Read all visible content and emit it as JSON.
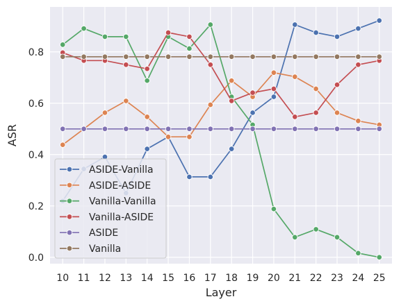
{
  "chart_data": {
    "type": "line",
    "title": "",
    "xlabel": "Layer",
    "ylabel": "ASR",
    "x": [
      10,
      11,
      12,
      13,
      14,
      15,
      16,
      17,
      18,
      19,
      20,
      21,
      22,
      23,
      24,
      25
    ],
    "x_tick_labels": [
      "10",
      "11",
      "12",
      "13",
      "14",
      "15",
      "16",
      "17",
      "18",
      "19",
      "20",
      "21",
      "22",
      "23",
      "24",
      "25"
    ],
    "xlim": [
      9.4,
      25.6
    ],
    "ylim": [
      -0.025,
      0.975
    ],
    "yticks": [
      0.0,
      0.2,
      0.4,
      0.6,
      0.8
    ],
    "y_tick_labels": [
      "0.0",
      "0.2",
      "0.4",
      "0.6",
      "0.8"
    ],
    "grid": true,
    "legend_position": "lower-left",
    "series": [
      {
        "name": "ASIDE-Vanilla",
        "color": "#4c72b0",
        "values": [
          0.219,
          0.344,
          0.391,
          0.25,
          0.422,
          0.469,
          0.313,
          0.313,
          0.422,
          0.563,
          0.625,
          0.906,
          0.875,
          0.859,
          0.891,
          0.922
        ]
      },
      {
        "name": "ASIDE-ASIDE",
        "color": "#dd8452",
        "values": [
          0.438,
          0.5,
          0.563,
          0.609,
          0.547,
          0.469,
          0.469,
          0.594,
          0.688,
          0.625,
          0.719,
          0.703,
          0.656,
          0.563,
          0.531,
          0.516
        ]
      },
      {
        "name": "Vanilla-Vanilla",
        "color": "#55a868",
        "values": [
          0.828,
          0.891,
          0.859,
          0.859,
          0.688,
          0.859,
          0.813,
          0.906,
          0.625,
          0.516,
          0.188,
          0.078,
          0.109,
          0.078,
          0.016,
          0.0
        ]
      },
      {
        "name": "Vanilla-ASIDE",
        "color": "#c44e52",
        "values": [
          0.797,
          0.766,
          0.766,
          0.75,
          0.734,
          0.875,
          0.859,
          0.75,
          0.609,
          0.641,
          0.656,
          0.547,
          0.563,
          0.672,
          0.75,
          0.766
        ]
      },
      {
        "name": "ASIDE",
        "color": "#8172b3",
        "values": [
          0.5,
          0.5,
          0.5,
          0.5,
          0.5,
          0.5,
          0.5,
          0.5,
          0.5,
          0.5,
          0.5,
          0.5,
          0.5,
          0.5,
          0.5,
          0.5
        ]
      },
      {
        "name": "Vanilla",
        "color": "#937860",
        "values": [
          0.781,
          0.781,
          0.781,
          0.781,
          0.781,
          0.781,
          0.781,
          0.781,
          0.781,
          0.781,
          0.781,
          0.781,
          0.781,
          0.781,
          0.781,
          0.781
        ]
      }
    ]
  }
}
